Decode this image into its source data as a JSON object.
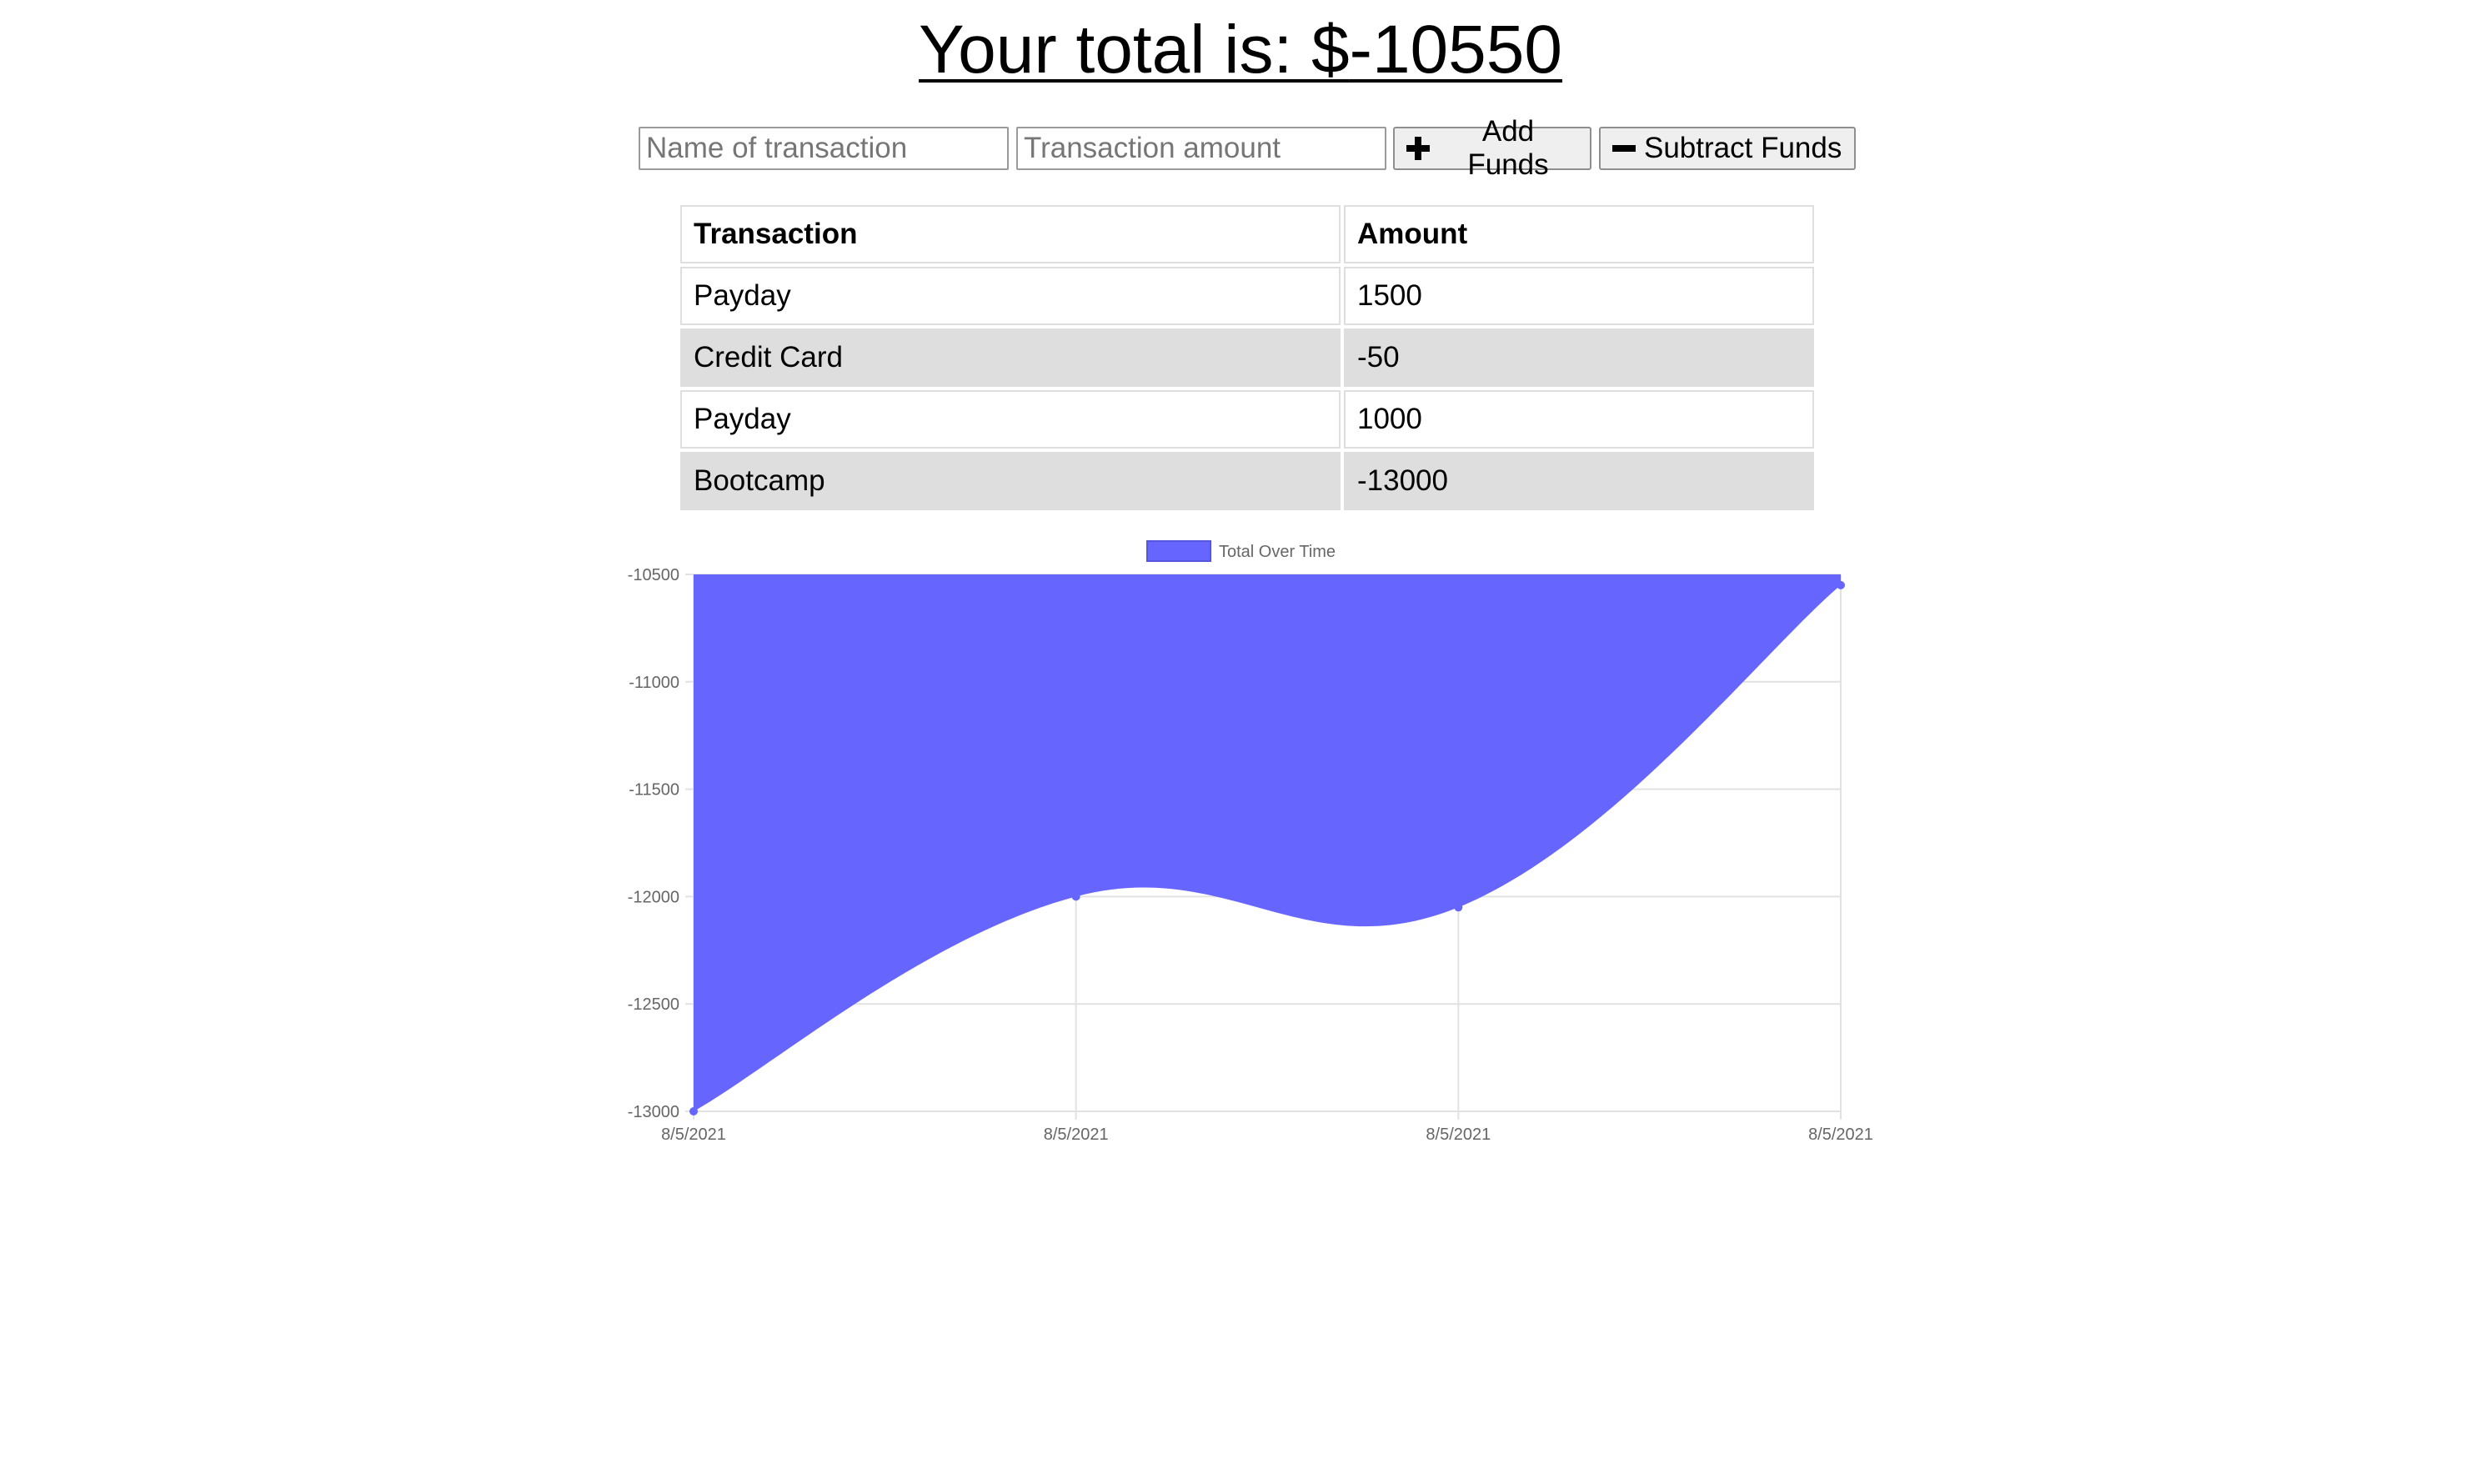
{
  "header": {
    "total_prefix": "Your total is: $",
    "total_value": "-10550"
  },
  "form": {
    "name_placeholder": "Name of transaction",
    "amount_placeholder": "Transaction amount",
    "add_label": "Add Funds",
    "subtract_label": "Subtract Funds"
  },
  "table": {
    "headers": [
      "Transaction",
      "Amount"
    ],
    "rows": [
      {
        "name": "Payday",
        "amount": "1500"
      },
      {
        "name": "Credit Card",
        "amount": "-50"
      },
      {
        "name": "Payday",
        "amount": "1000"
      },
      {
        "name": "Bootcamp",
        "amount": "-13000"
      }
    ]
  },
  "chart_data": {
    "type": "area",
    "x": [
      "8/5/2021",
      "8/5/2021",
      "8/5/2021",
      "8/5/2021"
    ],
    "series": [
      {
        "name": "Total Over Time",
        "values": [
          -13000,
          -12000,
          -12050,
          -10550
        ],
        "color": "#6666ff"
      }
    ],
    "ylim": [
      -13000,
      -10500
    ],
    "yticks": [
      -10500,
      -11000,
      -11500,
      -12000,
      -12500,
      -13000
    ],
    "legend": "top",
    "grid": true
  },
  "colors": {
    "fill": "#6666ff",
    "stripe": "#dedede"
  },
  "icons": {
    "add": "plus-icon",
    "subtract": "minus-icon"
  }
}
